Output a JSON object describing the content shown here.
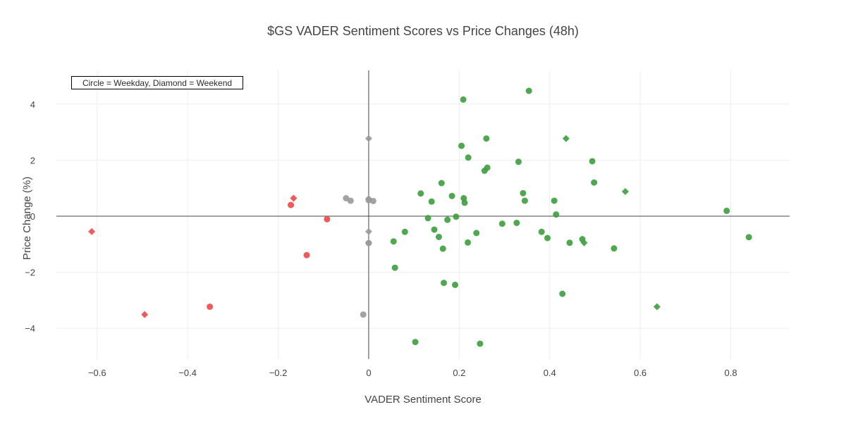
{
  "chart_data": {
    "type": "scatter",
    "title": "$GS VADER Sentiment Scores vs Price Changes (48h)",
    "xlabel": "VADER Sentiment Score",
    "ylabel": "Price Change (%)",
    "annotation": "Circle = Weekday, Diamond = Weekend",
    "xlim": [
      -0.69,
      0.93
    ],
    "ylim": [
      -5.1,
      5.2
    ],
    "x_ticks": [
      {
        "value": -0.6,
        "label": "−0.6"
      },
      {
        "value": -0.4,
        "label": "−0.4"
      },
      {
        "value": -0.2,
        "label": "−0.2"
      },
      {
        "value": 0,
        "label": "0"
      },
      {
        "value": 0.2,
        "label": "0.2"
      },
      {
        "value": 0.4,
        "label": "0.4"
      },
      {
        "value": 0.6,
        "label": "0.6"
      },
      {
        "value": 0.8,
        "label": "0.8"
      }
    ],
    "y_ticks": [
      {
        "value": -4,
        "label": "−4"
      },
      {
        "value": -2,
        "label": "−2"
      },
      {
        "value": 0,
        "label": "0"
      },
      {
        "value": 2,
        "label": "2"
      },
      {
        "value": 4,
        "label": "4"
      }
    ],
    "grid": true,
    "zero_lines": true,
    "colors": {
      "positive": "#3c9e3c",
      "neutral": "#999999",
      "negative": "#ef4848"
    },
    "points": [
      {
        "x": -0.612,
        "y": -0.55,
        "shape": "diamond",
        "color": "negative"
      },
      {
        "x": -0.495,
        "y": -3.51,
        "shape": "diamond",
        "color": "negative"
      },
      {
        "x": -0.351,
        "y": -3.23,
        "shape": "circle",
        "color": "negative"
      },
      {
        "x": -0.172,
        "y": 0.4,
        "shape": "circle",
        "color": "negative"
      },
      {
        "x": -0.166,
        "y": 0.64,
        "shape": "diamond",
        "color": "negative"
      },
      {
        "x": -0.137,
        "y": -1.39,
        "shape": "circle",
        "color": "negative"
      },
      {
        "x": -0.092,
        "y": -0.11,
        "shape": "circle",
        "color": "negative"
      },
      {
        "x": -0.05,
        "y": 0.64,
        "shape": "circle",
        "color": "neutral"
      },
      {
        "x": -0.04,
        "y": 0.55,
        "shape": "circle",
        "color": "neutral"
      },
      {
        "x": -0.012,
        "y": -3.51,
        "shape": "circle",
        "color": "neutral"
      },
      {
        "x": 0.0,
        "y": 2.77,
        "shape": "diamond",
        "color": "neutral"
      },
      {
        "x": 0.0,
        "y": 0.62,
        "shape": "diamond",
        "color": "neutral"
      },
      {
        "x": 0.0,
        "y": 0.57,
        "shape": "circle",
        "color": "neutral"
      },
      {
        "x": 0.0,
        "y": -0.55,
        "shape": "diamond",
        "color": "neutral"
      },
      {
        "x": 0.0,
        "y": -0.95,
        "shape": "diamond",
        "color": "neutral"
      },
      {
        "x": 0.0,
        "y": -0.96,
        "shape": "circle",
        "color": "neutral"
      },
      {
        "x": 0.01,
        "y": 0.54,
        "shape": "circle",
        "color": "neutral"
      },
      {
        "x": 0.055,
        "y": -0.9,
        "shape": "circle",
        "color": "positive"
      },
      {
        "x": 0.058,
        "y": -1.84,
        "shape": "circle",
        "color": "positive"
      },
      {
        "x": 0.08,
        "y": -0.56,
        "shape": "circle",
        "color": "positive"
      },
      {
        "x": 0.103,
        "y": -4.49,
        "shape": "circle",
        "color": "positive"
      },
      {
        "x": 0.115,
        "y": 0.81,
        "shape": "circle",
        "color": "positive"
      },
      {
        "x": 0.131,
        "y": -0.07,
        "shape": "circle",
        "color": "positive"
      },
      {
        "x": 0.139,
        "y": 0.52,
        "shape": "circle",
        "color": "positive"
      },
      {
        "x": 0.145,
        "y": -0.48,
        "shape": "circle",
        "color": "positive"
      },
      {
        "x": 0.155,
        "y": -0.74,
        "shape": "circle",
        "color": "positive"
      },
      {
        "x": 0.161,
        "y": 1.18,
        "shape": "circle",
        "color": "positive"
      },
      {
        "x": 0.164,
        "y": -1.16,
        "shape": "circle",
        "color": "positive"
      },
      {
        "x": 0.166,
        "y": -2.38,
        "shape": "circle",
        "color": "positive"
      },
      {
        "x": 0.174,
        "y": -0.13,
        "shape": "circle",
        "color": "positive"
      },
      {
        "x": 0.184,
        "y": 0.72,
        "shape": "circle",
        "color": "positive"
      },
      {
        "x": 0.191,
        "y": -2.45,
        "shape": "circle",
        "color": "positive"
      },
      {
        "x": 0.193,
        "y": -0.02,
        "shape": "circle",
        "color": "positive"
      },
      {
        "x": 0.205,
        "y": 2.51,
        "shape": "circle",
        "color": "positive"
      },
      {
        "x": 0.209,
        "y": 4.16,
        "shape": "circle",
        "color": "positive"
      },
      {
        "x": 0.21,
        "y": 0.64,
        "shape": "circle",
        "color": "positive"
      },
      {
        "x": 0.212,
        "y": 0.48,
        "shape": "circle",
        "color": "positive"
      },
      {
        "x": 0.219,
        "y": -0.94,
        "shape": "circle",
        "color": "positive"
      },
      {
        "x": 0.22,
        "y": 2.09,
        "shape": "circle",
        "color": "positive"
      },
      {
        "x": 0.238,
        "y": -0.6,
        "shape": "circle",
        "color": "positive"
      },
      {
        "x": 0.246,
        "y": -4.55,
        "shape": "circle",
        "color": "positive"
      },
      {
        "x": 0.256,
        "y": 1.62,
        "shape": "circle",
        "color": "positive"
      },
      {
        "x": 0.26,
        "y": 2.77,
        "shape": "circle",
        "color": "positive"
      },
      {
        "x": 0.262,
        "y": 1.73,
        "shape": "circle",
        "color": "positive"
      },
      {
        "x": 0.295,
        "y": -0.27,
        "shape": "circle",
        "color": "positive"
      },
      {
        "x": 0.327,
        "y": -0.24,
        "shape": "circle",
        "color": "positive"
      },
      {
        "x": 0.331,
        "y": 1.94,
        "shape": "circle",
        "color": "positive"
      },
      {
        "x": 0.341,
        "y": 0.82,
        "shape": "circle",
        "color": "positive"
      },
      {
        "x": 0.345,
        "y": 0.55,
        "shape": "circle",
        "color": "positive"
      },
      {
        "x": 0.354,
        "y": 4.47,
        "shape": "circle",
        "color": "positive"
      },
      {
        "x": 0.382,
        "y": -0.56,
        "shape": "circle",
        "color": "positive"
      },
      {
        "x": 0.395,
        "y": -0.78,
        "shape": "circle",
        "color": "positive"
      },
      {
        "x": 0.41,
        "y": 0.55,
        "shape": "circle",
        "color": "positive"
      },
      {
        "x": 0.414,
        "y": 0.06,
        "shape": "circle",
        "color": "positive"
      },
      {
        "x": 0.428,
        "y": -2.77,
        "shape": "circle",
        "color": "positive"
      },
      {
        "x": 0.436,
        "y": 2.77,
        "shape": "diamond",
        "color": "positive"
      },
      {
        "x": 0.444,
        "y": -0.95,
        "shape": "circle",
        "color": "positive"
      },
      {
        "x": 0.472,
        "y": -0.82,
        "shape": "circle",
        "color": "positive"
      },
      {
        "x": 0.476,
        "y": -0.95,
        "shape": "diamond",
        "color": "positive"
      },
      {
        "x": 0.494,
        "y": 1.96,
        "shape": "circle",
        "color": "positive"
      },
      {
        "x": 0.498,
        "y": 1.2,
        "shape": "circle",
        "color": "positive"
      },
      {
        "x": 0.542,
        "y": -1.15,
        "shape": "circle",
        "color": "positive"
      },
      {
        "x": 0.567,
        "y": 0.88,
        "shape": "diamond",
        "color": "positive"
      },
      {
        "x": 0.637,
        "y": -3.23,
        "shape": "diamond",
        "color": "positive"
      },
      {
        "x": 0.791,
        "y": 0.19,
        "shape": "circle",
        "color": "positive"
      },
      {
        "x": 0.84,
        "y": -0.75,
        "shape": "circle",
        "color": "positive"
      }
    ]
  }
}
